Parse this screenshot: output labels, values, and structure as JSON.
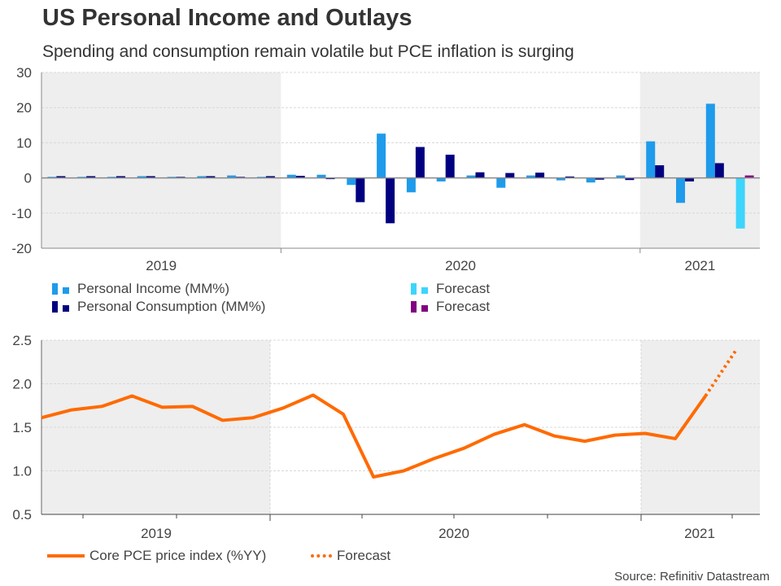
{
  "title": "US Personal Income and Outlays",
  "subtitle": "Spending and consumption remain volatile but PCE inflation is surging",
  "source": "Source: Refinitiv Datastream",
  "colors": {
    "income": "#1e9beb",
    "consumption": "#000080",
    "income_forecast": "#3dd5fb",
    "consumption_forecast": "#800080",
    "core_pce": "#ff6a00",
    "shade": "#eeeeee"
  },
  "chart_data": [
    {
      "type": "bar",
      "title": "",
      "xlabel": "",
      "ylabel": "",
      "ylim": [
        -20,
        30
      ],
      "yticks": [
        "30",
        "20",
        "10",
        "0",
        "-10",
        "-20"
      ],
      "ytick_values": [
        30,
        20,
        10,
        0,
        -10,
        -20
      ],
      "year_labels": [
        "2019",
        "2020",
        "2021"
      ],
      "categories": [
        "2019-05",
        "2019-06",
        "2019-07",
        "2019-08",
        "2019-09",
        "2019-10",
        "2019-11",
        "2019-12",
        "2020-01",
        "2020-02",
        "2020-03",
        "2020-04",
        "2020-05",
        "2020-06",
        "2020-07",
        "2020-08",
        "2020-09",
        "2020-10",
        "2020-11",
        "2020-12",
        "2021-01",
        "2021-02",
        "2021-03",
        "2021-04"
      ],
      "shaded_periods": [
        [
          0,
          8
        ],
        [
          20,
          24
        ]
      ],
      "series": [
        {
          "name": "Personal Income (MM%)",
          "values": [
            0.3,
            0.3,
            0.3,
            0.5,
            0.3,
            0.5,
            0.7,
            0.3,
            0.9,
            0.9,
            -2.0,
            12.6,
            -4.1,
            -1.0,
            0.7,
            -2.8,
            0.7,
            -0.7,
            -1.3,
            0.7,
            10.4,
            -7.1,
            21.1,
            null
          ]
        },
        {
          "name": "Personal Consumption (MM%)",
          "values": [
            0.5,
            0.5,
            0.5,
            0.5,
            0.3,
            0.5,
            0.3,
            0.5,
            0.6,
            -0.1,
            -6.9,
            -12.9,
            8.8,
            6.6,
            1.6,
            1.4,
            1.5,
            0.4,
            -0.5,
            -0.6,
            3.6,
            -1.0,
            4.2,
            null
          ]
        },
        {
          "name": "Forecast",
          "role": "income_forecast",
          "values": [
            null,
            null,
            null,
            null,
            null,
            null,
            null,
            null,
            null,
            null,
            null,
            null,
            null,
            null,
            null,
            null,
            null,
            null,
            null,
            null,
            null,
            null,
            null,
            -14.4
          ]
        },
        {
          "name": "Forecast",
          "role": "consumption_forecast",
          "values": [
            null,
            null,
            null,
            null,
            null,
            null,
            null,
            null,
            null,
            null,
            null,
            null,
            null,
            null,
            null,
            null,
            null,
            null,
            null,
            null,
            null,
            null,
            null,
            0.7
          ]
        }
      ],
      "legend": [
        {
          "label": "Personal Income (MM%)",
          "color_key": "income"
        },
        {
          "label": "Personal Consumption (MM%)",
          "color_key": "consumption"
        },
        {
          "label": "Forecast",
          "color_key": "income_forecast"
        },
        {
          "label": "Forecast",
          "color_key": "consumption_forecast"
        }
      ],
      "legend_position": "bottom",
      "grid": true
    },
    {
      "type": "line",
      "title": "",
      "xlabel": "",
      "ylabel": "",
      "ylim": [
        0.5,
        2.5
      ],
      "yticks": [
        "2.5",
        "2.0",
        "1.5",
        "1.0",
        "0.5"
      ],
      "ytick_values": [
        2.5,
        2.0,
        1.5,
        1.0,
        0.5
      ],
      "year_labels": [
        "2019",
        "2020",
        "2021"
      ],
      "x": [
        "2019-04",
        "2019-05",
        "2019-06",
        "2019-07",
        "2019-08",
        "2019-09",
        "2019-10",
        "2019-11",
        "2019-12",
        "2020-01",
        "2020-02",
        "2020-03",
        "2020-04",
        "2020-05",
        "2020-06",
        "2020-07",
        "2020-08",
        "2020-09",
        "2020-10",
        "2020-11",
        "2020-12",
        "2021-01",
        "2021-02",
        "2021-03",
        "2021-04"
      ],
      "series": [
        {
          "name": "Core PCE price index (%YY)",
          "values": [
            1.61,
            1.7,
            1.74,
            1.86,
            1.73,
            1.74,
            1.58,
            1.61,
            1.72,
            1.87,
            1.65,
            0.93,
            1.0,
            1.14,
            1.26,
            1.42,
            1.53,
            1.4,
            1.34,
            1.41,
            1.43,
            1.37,
            1.86,
            null,
            null
          ]
        },
        {
          "name": "Forecast",
          "style": "dotted",
          "values": [
            null,
            null,
            null,
            null,
            null,
            null,
            null,
            null,
            null,
            null,
            null,
            null,
            null,
            null,
            null,
            null,
            null,
            null,
            null,
            null,
            null,
            null,
            1.86,
            2.38,
            null
          ]
        }
      ],
      "legend": [
        {
          "label": "Core PCE price index (%YY)",
          "style": "solid"
        },
        {
          "label": "Forecast",
          "style": "dotted"
        }
      ],
      "legend_position": "bottom",
      "grid": true
    }
  ]
}
